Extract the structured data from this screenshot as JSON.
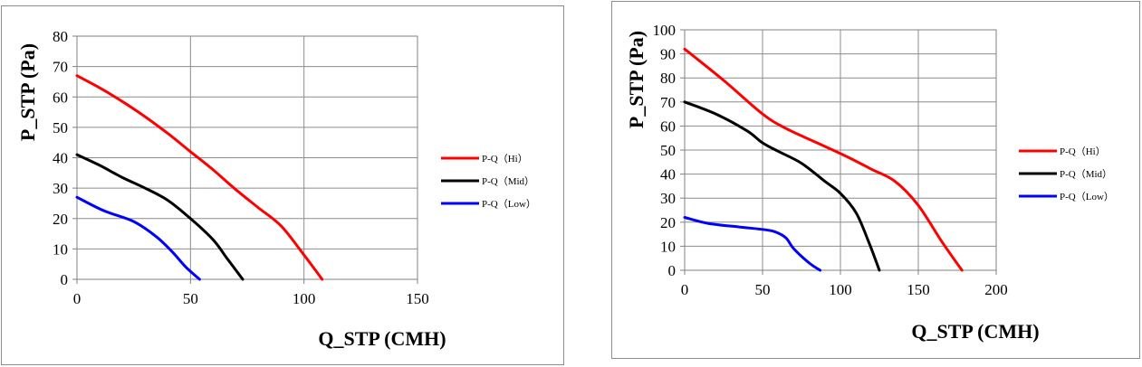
{
  "chart_data": [
    {
      "type": "line",
      "xlabel": "Q_STP (CMH)",
      "ylabel": "P_STP (Pa)",
      "xlim": [
        0,
        150
      ],
      "ylim": [
        0,
        80
      ],
      "x_ticks": [
        "0",
        "50",
        "100",
        "150"
      ],
      "y_ticks": [
        "0",
        "10",
        "20",
        "30",
        "40",
        "50",
        "60",
        "70",
        "80"
      ],
      "grid": true,
      "legend_position": "right",
      "series": [
        {
          "name": "P-Q（Hi）",
          "color": "#ff0000",
          "points": [
            [
              0,
              67
            ],
            [
              10,
              63
            ],
            [
              20,
              58.5
            ],
            [
              30,
              53.5
            ],
            [
              40,
              48
            ],
            [
              50,
              42
            ],
            [
              60,
              36
            ],
            [
              70,
              29.5
            ],
            [
              80,
              23.5
            ],
            [
              90,
              17.5
            ],
            [
              100,
              8
            ],
            [
              108,
              0
            ]
          ]
        },
        {
          "name": "P-Q（Mid）",
          "color": "#000000",
          "points": [
            [
              0,
              41
            ],
            [
              10,
              37.5
            ],
            [
              20,
              33.5
            ],
            [
              30,
              30
            ],
            [
              40,
              26
            ],
            [
              50,
              20
            ],
            [
              60,
              13
            ],
            [
              66,
              7
            ],
            [
              73,
              0
            ]
          ]
        },
        {
          "name": "P-Q（Low）",
          "color": "#0000ff",
          "points": [
            [
              0,
              27
            ],
            [
              12,
              22.5
            ],
            [
              25,
              19
            ],
            [
              35,
              14
            ],
            [
              42,
              9
            ],
            [
              48,
              4
            ],
            [
              54,
              0
            ]
          ]
        }
      ]
    },
    {
      "type": "line",
      "xlabel": "Q_STP (CMH)",
      "ylabel": "P_STP (Pa)",
      "xlim": [
        0,
        200
      ],
      "ylim": [
        0,
        100
      ],
      "x_ticks": [
        "0",
        "50",
        "100",
        "150",
        "200"
      ],
      "y_ticks": [
        "0",
        "10",
        "20",
        "30",
        "40",
        "50",
        "60",
        "70",
        "80",
        "90",
        "100"
      ],
      "grid": true,
      "legend_position": "right",
      "series": [
        {
          "name": "P-Q（Hi）",
          "color": "#ff0000",
          "points": [
            [
              0,
              92
            ],
            [
              25,
              79
            ],
            [
              50,
              65
            ],
            [
              65,
              59
            ],
            [
              85,
              53
            ],
            [
              105,
              47
            ],
            [
              120,
              42
            ],
            [
              135,
              37
            ],
            [
              150,
              27
            ],
            [
              165,
              12
            ],
            [
              178,
              0
            ]
          ]
        },
        {
          "name": "P-Q（Mid）",
          "color": "#000000",
          "points": [
            [
              0,
              70
            ],
            [
              20,
              65
            ],
            [
              40,
              58
            ],
            [
              50,
              53
            ],
            [
              60,
              49.5
            ],
            [
              75,
              44.5
            ],
            [
              90,
              37
            ],
            [
              100,
              32
            ],
            [
              110,
              24
            ],
            [
              118,
              12
            ],
            [
              125,
              0
            ]
          ]
        },
        {
          "name": "P-Q（Low）",
          "color": "#0000ff",
          "points": [
            [
              0,
              22
            ],
            [
              15,
              19.5
            ],
            [
              35,
              18
            ],
            [
              50,
              17
            ],
            [
              58,
              16
            ],
            [
              65,
              13.5
            ],
            [
              70,
              9
            ],
            [
              80,
              3
            ],
            [
              87,
              0
            ]
          ]
        }
      ]
    }
  ]
}
